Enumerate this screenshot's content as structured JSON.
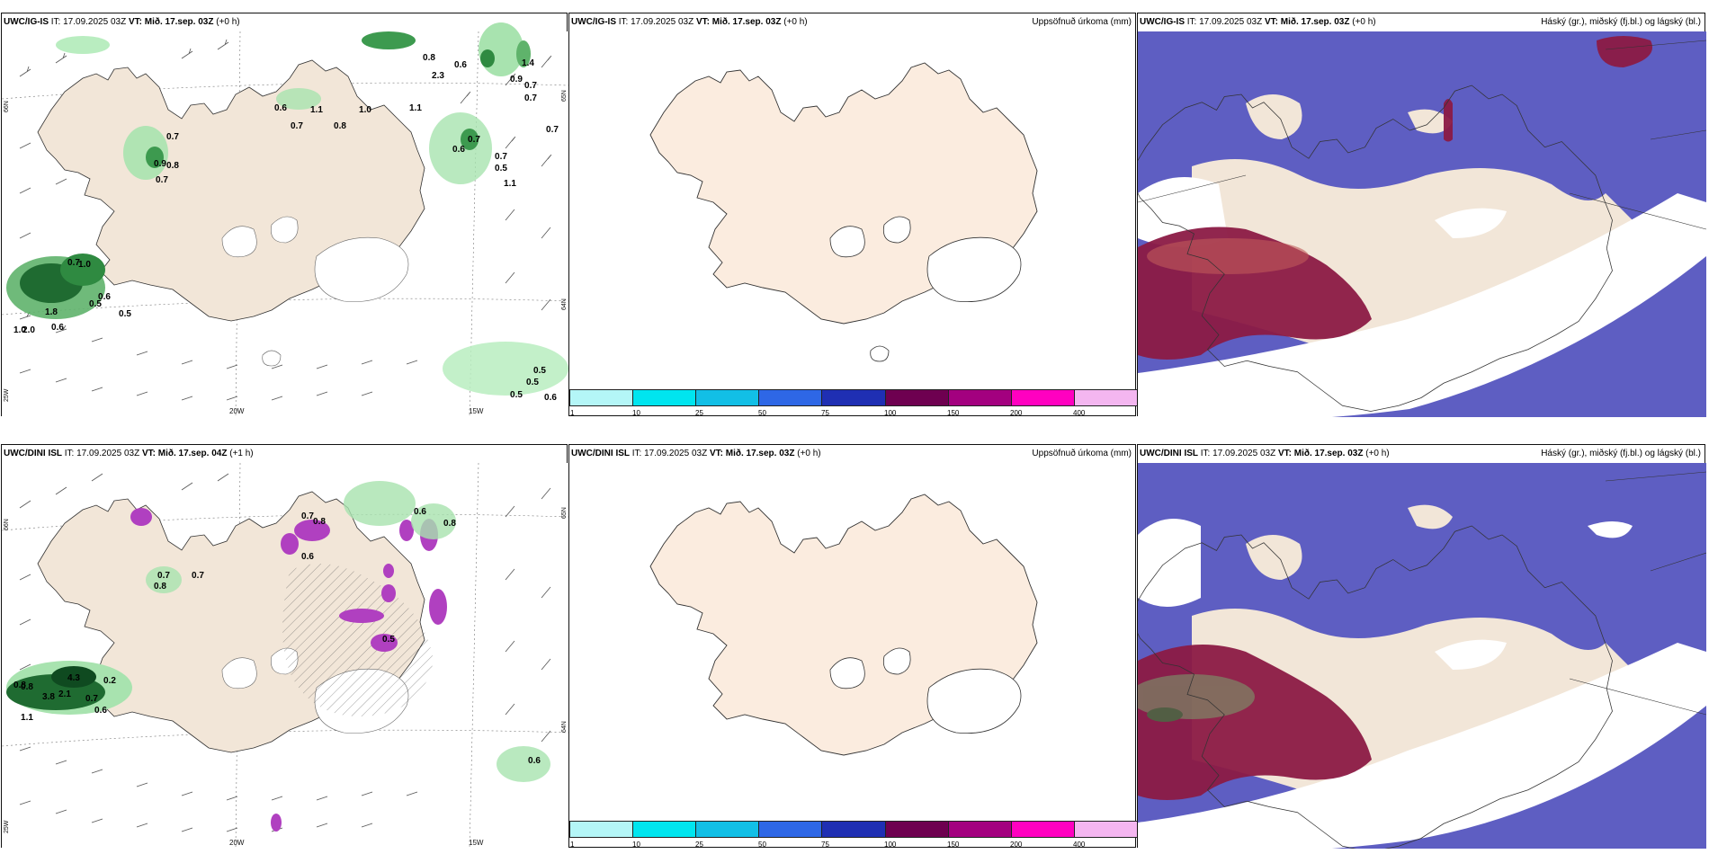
{
  "rows": [
    {
      "wind": {
        "model": "UWC/IG-IS",
        "init_label": "IT:",
        "init_time": "17.09.2025 03Z",
        "valid_label": "VT:",
        "valid_time": "Mið. 17.sep. 03Z",
        "lead": "(+0 h)",
        "lat_left": "66N",
        "lat_right": "65N",
        "lat_right2": "64N",
        "lon_left": "25W",
        "lon_mid1": "20W",
        "lon_mid2": "15W",
        "values": [
          "0.8",
          "1.4",
          "0.6",
          "2.3",
          "0.9",
          "0.7",
          "0.7",
          "0.6",
          "1.1",
          "0.7",
          "1.0",
          "1.1",
          "0.7",
          "0.8",
          "0.7",
          "0.6",
          "0.7",
          "0.7",
          "0.5",
          "1.1",
          "0.9",
          "0.8",
          "0.7",
          "0.7",
          "1.0",
          "0.6",
          "0.5",
          "0.5",
          "2.0",
          "1.8",
          "0.6",
          "1.0",
          "0.5",
          "0.5",
          "0.5",
          "0.6"
        ]
      },
      "precip": {
        "model": "UWC/IG-IS",
        "init_label": "IT:",
        "init_time": "17.09.2025 03Z",
        "valid_label": "VT:",
        "valid_time": "Mið. 17.sep. 03Z",
        "lead": "(+0 h)",
        "title": "Uppsöfnuð úrkoma (mm)"
      },
      "cloud": {
        "model": "UWC/IG-IS",
        "init_label": "IT:",
        "init_time": "17.09.2025 03Z",
        "valid_label": "VT:",
        "valid_time": "Mið. 17.sep. 03Z",
        "lead": "(+0 h)",
        "title": "Háský (gr.), miðský (fj.bl.) og lágský (bl.)"
      }
    },
    {
      "wind": {
        "model": "UWC/DINI ISL",
        "init_label": "IT:",
        "init_time": "17.09.2025 03Z",
        "valid_label": "VT:",
        "valid_time": "Mið. 17.sep. 04Z",
        "lead": "(+1 h)",
        "lat_left": "66N",
        "lat_right": "65N",
        "lat_right2": "64N",
        "lon_left": "25W",
        "lon_mid1": "20W",
        "lon_mid2": "15W",
        "values": [
          "0.6",
          "0.8",
          "0.7",
          "0.8",
          "0.7",
          "0.8",
          "0.7",
          "0.6",
          "0.5",
          "0.8",
          "0.8",
          "4.3",
          "0.2",
          "3.8",
          "2.1",
          "0.7",
          "0.6",
          "1.1",
          "0.6"
        ]
      },
      "precip": {
        "model": "UWC/DINI ISL",
        "init_label": "IT:",
        "init_time": "17.09.2025 03Z",
        "valid_label": "VT:",
        "valid_time": "Mið. 17.sep. 03Z",
        "lead": "(+0 h)",
        "title": "Uppsöfnuð úrkoma (mm)"
      },
      "cloud": {
        "model": "UWC/DINI ISL",
        "init_label": "IT:",
        "init_time": "17.09.2025 03Z",
        "valid_label": "VT:",
        "valid_time": "Mið. 17.sep. 03Z",
        "lead": "(+0 h)",
        "title": "Háský (gr.), miðský (fj.bl.) og lágský (bl.)"
      }
    }
  ],
  "colorbar": {
    "ticks": [
      "1",
      "10",
      "25",
      "50",
      "75",
      "100",
      "150",
      "200",
      "400"
    ],
    "colors": [
      "#b4f6f7",
      "#00e5ef",
      "#12bfe6",
      "#2e67e6",
      "#1f2fb3",
      "#6e0050",
      "#a3007f",
      "#ff00c0",
      "#f4b6f0"
    ]
  },
  "palette": {
    "land": "#f2e6d8",
    "land_precip": "#fbecdf",
    "cloud_mid": "#5e5ec2",
    "cloud_high": "#8b1a45",
    "precip_green": "#3d9a4f"
  }
}
